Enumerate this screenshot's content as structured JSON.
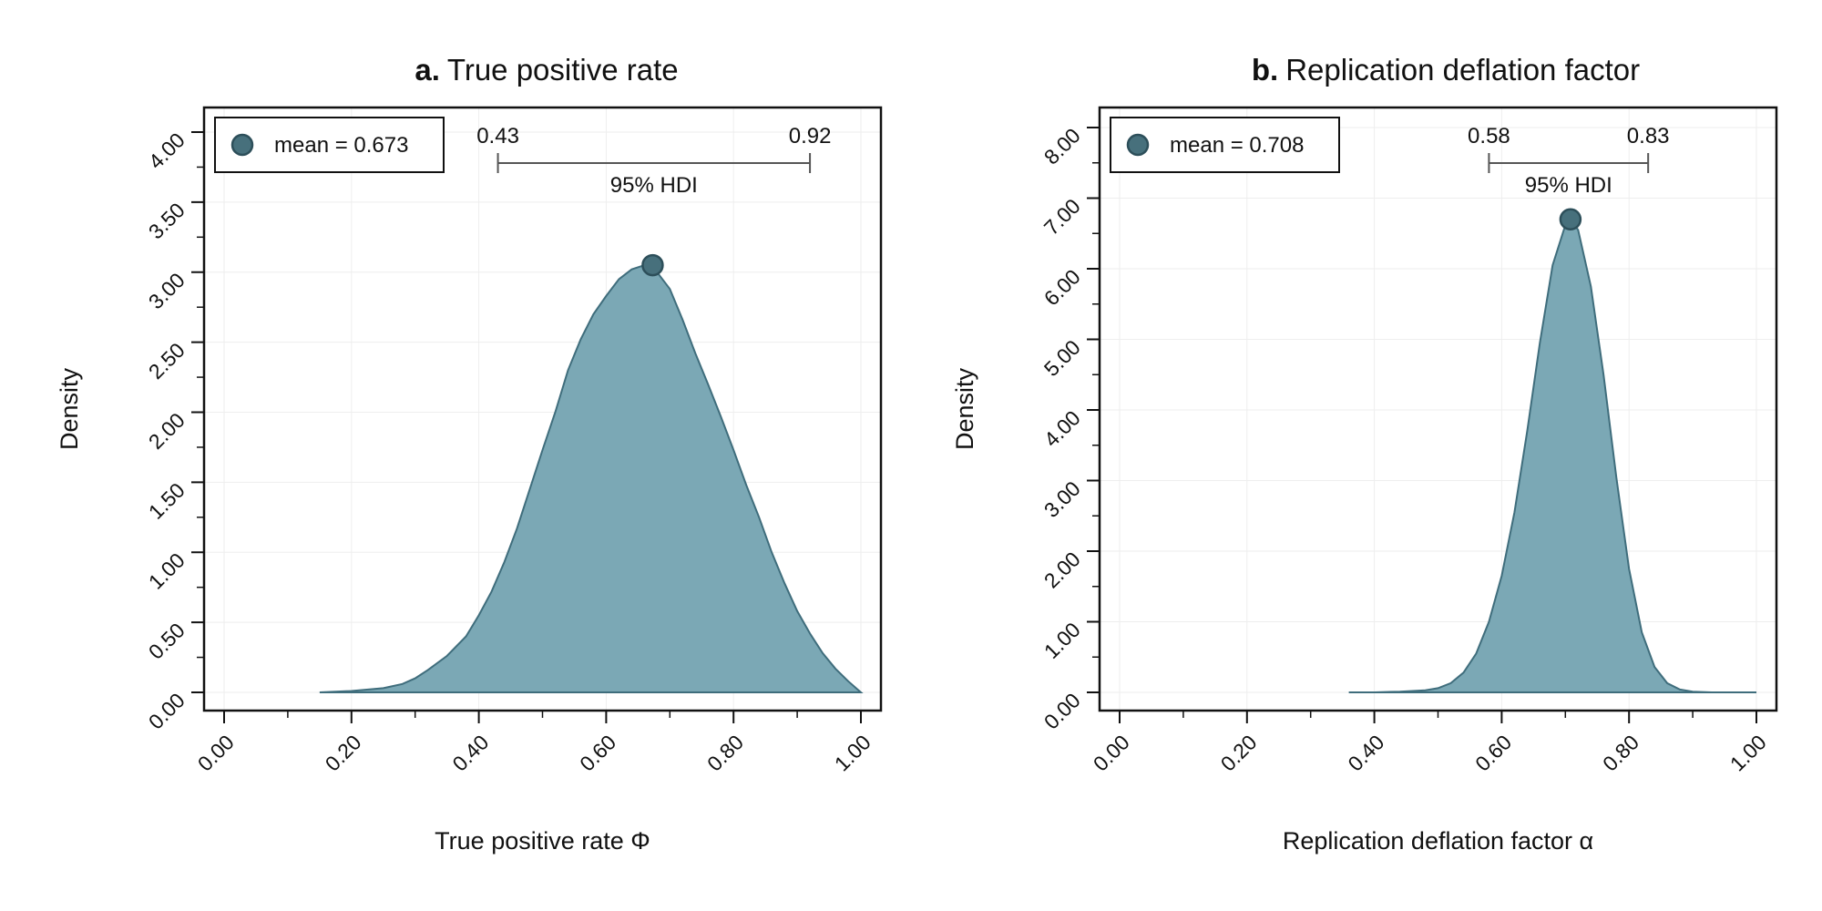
{
  "chart_data": [
    {
      "type": "area",
      "panel_letter": "a.",
      "title": "True positive rate",
      "xlabel": "True positive rate Φ",
      "ylabel": "Density",
      "xlim": [
        0,
        1
      ],
      "ylim": [
        0,
        4
      ],
      "x_ticks": [
        "0.00",
        "0.20",
        "0.40",
        "0.60",
        "0.80",
        "1.00"
      ],
      "y_ticks": [
        "0.00",
        "0.50",
        "1.00",
        "1.50",
        "2.00",
        "2.50",
        "3.00",
        "3.50",
        "4.00"
      ],
      "grid": true,
      "legend_position": "top-left",
      "legend_label": "mean = 0.673",
      "mean": 0.673,
      "mean_density": 3.05,
      "hdi": {
        "low": 0.43,
        "high": 0.92,
        "low_label": "0.43",
        "high_label": "0.92",
        "label": "95% HDI"
      },
      "series": [
        {
          "x": [
            0.15,
            0.2,
            0.25,
            0.28,
            0.3,
            0.32,
            0.35,
            0.38,
            0.4,
            0.42,
            0.44,
            0.46,
            0.48,
            0.5,
            0.52,
            0.54,
            0.56,
            0.58,
            0.6,
            0.62,
            0.64,
            0.66,
            0.673,
            0.68,
            0.7,
            0.72,
            0.74,
            0.76,
            0.78,
            0.8,
            0.82,
            0.84,
            0.86,
            0.88,
            0.9,
            0.92,
            0.94,
            0.96,
            0.98,
            1.0
          ],
          "y": [
            0.0,
            0.01,
            0.03,
            0.06,
            0.1,
            0.16,
            0.26,
            0.4,
            0.55,
            0.72,
            0.93,
            1.17,
            1.45,
            1.73,
            2.0,
            2.3,
            2.52,
            2.7,
            2.83,
            2.95,
            3.02,
            3.05,
            3.05,
            3.0,
            2.88,
            2.66,
            2.42,
            2.2,
            1.97,
            1.73,
            1.48,
            1.25,
            1.0,
            0.78,
            0.58,
            0.42,
            0.28,
            0.17,
            0.08,
            0.0
          ]
        }
      ],
      "colors": {
        "fill": "#7ba8b5",
        "stroke": "#3f6d7c",
        "marker": "#47707c"
      }
    },
    {
      "type": "area",
      "panel_letter": "b.",
      "title": "Replication deflation factor",
      "xlabel": "Replication deflation factor α",
      "ylabel": "Density",
      "xlim": [
        0,
        1
      ],
      "ylim": [
        0,
        8
      ],
      "x_ticks": [
        "0.00",
        "0.20",
        "0.40",
        "0.60",
        "0.80",
        "1.00"
      ],
      "y_ticks": [
        "0.00",
        "1.00",
        "2.00",
        "3.00",
        "4.00",
        "5.00",
        "6.00",
        "7.00",
        "8.00"
      ],
      "grid": true,
      "legend_position": "top-left",
      "legend_label": "mean = 0.708",
      "mean": 0.708,
      "mean_density": 6.7,
      "hdi": {
        "low": 0.58,
        "high": 0.83,
        "low_label": "0.58",
        "high_label": "0.83",
        "label": "95% HDI"
      },
      "series": [
        {
          "x": [
            0.36,
            0.4,
            0.44,
            0.48,
            0.5,
            0.52,
            0.54,
            0.56,
            0.58,
            0.6,
            0.62,
            0.64,
            0.66,
            0.68,
            0.7,
            0.708,
            0.72,
            0.74,
            0.76,
            0.78,
            0.8,
            0.82,
            0.84,
            0.86,
            0.88,
            0.9,
            0.93,
            0.97,
            1.0
          ],
          "y": [
            0.0,
            0.0,
            0.01,
            0.03,
            0.06,
            0.13,
            0.28,
            0.55,
            1.0,
            1.65,
            2.55,
            3.7,
            4.95,
            6.05,
            6.62,
            6.7,
            6.55,
            5.75,
            4.5,
            3.05,
            1.75,
            0.85,
            0.36,
            0.13,
            0.04,
            0.01,
            0.0,
            0.0,
            0.0
          ]
        }
      ],
      "colors": {
        "fill": "#7ba8b5",
        "stroke": "#3f6d7c",
        "marker": "#47707c"
      }
    }
  ]
}
